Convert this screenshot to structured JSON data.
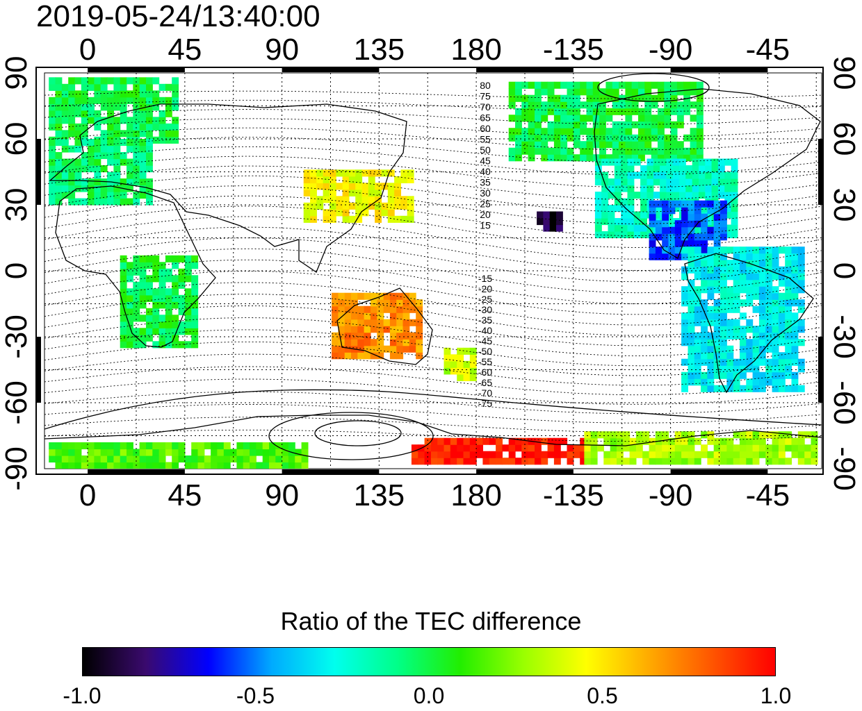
{
  "timestamp": "2019-05-24/13:40:00",
  "colorbar": {
    "title": "Ratio of the TEC difference",
    "ticks": [
      "-1.0",
      "-0.5",
      "0.0",
      "0.5",
      "1.0"
    ],
    "range": [
      -1.0,
      1.0
    ],
    "stops": [
      "#000000",
      "#3a0a6e",
      "#0000ff",
      "#00aaff",
      "#00ffee",
      "#00ff88",
      "#22ee00",
      "#99ff00",
      "#ffff00",
      "#ffaa00",
      "#ff5500",
      "#ff0000"
    ]
  },
  "map": {
    "longitude_ticks": [
      "0",
      "45",
      "90",
      "135",
      "180",
      "-135",
      "-90",
      "-45"
    ],
    "longitude_values": [
      0,
      45,
      90,
      135,
      180,
      -135,
      -90,
      -45
    ],
    "latitude_ticks_left": [
      "90",
      "60",
      "30",
      "0",
      "-30",
      "-60",
      "-90"
    ],
    "latitude_ticks_right": [
      "90",
      "60",
      "30",
      "0",
      "-30",
      "-60",
      "-90"
    ],
    "latitude_values": [
      90,
      60,
      30,
      0,
      -30,
      -60,
      -90
    ],
    "lon_range": [
      -20,
      340
    ],
    "lat_range": [
      -90,
      90
    ],
    "magnetic_contour_labels_north": [
      "80",
      "75",
      "70",
      "65",
      "60",
      "55",
      "50",
      "45",
      "40",
      "35",
      "30",
      "25",
      "20",
      "15"
    ],
    "magnetic_contour_labels_south": [
      "-15",
      "-20",
      "-25",
      "-30",
      "-35",
      "-40",
      "-45",
      "-50",
      "-55",
      "-60",
      "-65",
      "-70",
      "-75"
    ],
    "tec_regions": [
      {
        "lon": [
          -18,
          40
        ],
        "lat": [
          58,
          88
        ],
        "value": 0.0
      },
      {
        "lon": [
          -18,
          30
        ],
        "lat": [
          30,
          58
        ],
        "value": -0.05
      },
      {
        "lon": [
          15,
          50
        ],
        "lat": [
          -35,
          5
        ],
        "value": 0.0
      },
      {
        "lon": [
          100,
          150
        ],
        "lat": [
          22,
          45
        ],
        "value": 0.45
      },
      {
        "lon": [
          113,
          155
        ],
        "lat": [
          -40,
          -12
        ],
        "value": 0.7
      },
      {
        "lon": [
          165,
          180
        ],
        "lat": [
          -50,
          -35
        ],
        "value": 0.35
      },
      {
        "lon": [
          195,
          285
        ],
        "lat": [
          50,
          85
        ],
        "value": 0.0
      },
      {
        "lon": [
          235,
          300
        ],
        "lat": [
          15,
          50
        ],
        "value": -0.2
      },
      {
        "lon": [
          260,
          295
        ],
        "lat": [
          5,
          30
        ],
        "value": -0.55
      },
      {
        "lon": [
          275,
          330
        ],
        "lat": [
          -55,
          10
        ],
        "value": -0.3
      },
      {
        "lon": [
          150,
          230
        ],
        "lat": [
          -88,
          -78
        ],
        "value": 0.95
      },
      {
        "lon": [
          230,
          338
        ],
        "lat": [
          -88,
          -75
        ],
        "value": 0.3
      },
      {
        "lon": [
          -18,
          100
        ],
        "lat": [
          -90,
          -80
        ],
        "value": 0.15
      },
      {
        "lon": [
          208,
          218
        ],
        "lat": [
          18,
          26
        ],
        "value": -0.9
      }
    ]
  }
}
